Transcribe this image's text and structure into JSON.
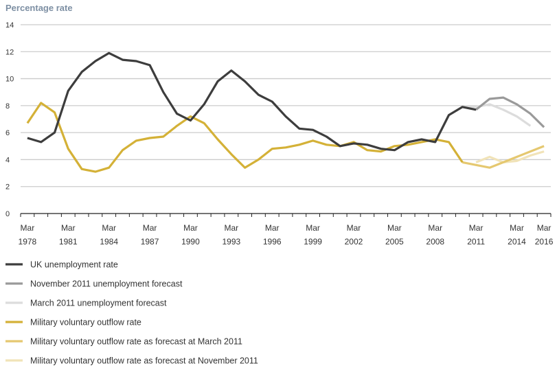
{
  "chart_data": {
    "type": "line",
    "title": "",
    "ylabel": "Percentage rate",
    "xlabel": "",
    "ylim": [
      0,
      14
    ],
    "yticks": [
      0,
      2,
      4,
      6,
      8,
      10,
      12,
      14
    ],
    "xlim": [
      1978,
      2016
    ],
    "xtick_labels": [
      {
        "year": 1978,
        "line1": "Mar",
        "line2": "1978"
      },
      {
        "year": 1981,
        "line1": "Mar",
        "line2": "1981"
      },
      {
        "year": 1984,
        "line1": "Mar",
        "line2": "1984"
      },
      {
        "year": 1987,
        "line1": "Mar",
        "line2": "1987"
      },
      {
        "year": 1990,
        "line1": "Mar",
        "line2": "1990"
      },
      {
        "year": 1993,
        "line1": "Mar",
        "line2": "1993"
      },
      {
        "year": 1996,
        "line1": "Mar",
        "line2": "1996"
      },
      {
        "year": 1999,
        "line1": "Mar",
        "line2": "1999"
      },
      {
        "year": 2002,
        "line1": "Mar",
        "line2": "2002"
      },
      {
        "year": 2005,
        "line1": "Mar",
        "line2": "2005"
      },
      {
        "year": 2008,
        "line1": "Mar",
        "line2": "2008"
      },
      {
        "year": 2011,
        "line1": "Mar",
        "line2": "2011"
      },
      {
        "year": 2014,
        "line1": "Mar",
        "line2": "2014"
      },
      {
        "year": 2016,
        "line1": "Mar",
        "line2": "2016"
      }
    ],
    "grid": true,
    "legend_position": "bottom",
    "series": [
      {
        "name": "UK unemployment rate",
        "color": "#3d3d3d",
        "x": [
          1978,
          1979,
          1980,
          1981,
          1982,
          1983,
          1984,
          1985,
          1986,
          1987,
          1988,
          1989,
          1990,
          1991,
          1992,
          1993,
          1994,
          1995,
          1996,
          1997,
          1998,
          1999,
          2000,
          2001,
          2002,
          2003,
          2004,
          2005,
          2006,
          2007,
          2008,
          2009,
          2010,
          2011
        ],
        "y": [
          5.6,
          5.3,
          6.0,
          9.1,
          10.5,
          11.3,
          11.9,
          11.4,
          11.3,
          11.0,
          9.0,
          7.4,
          6.9,
          8.1,
          9.8,
          10.6,
          9.8,
          8.8,
          8.3,
          7.2,
          6.3,
          6.2,
          5.7,
          5.0,
          5.2,
          5.1,
          4.8,
          4.7,
          5.3,
          5.5,
          5.3,
          7.3,
          7.9,
          7.7
        ]
      },
      {
        "name": "November 2011 unemployment forecast",
        "color": "#9a9a9a",
        "x": [
          2011,
          2012,
          2013,
          2014,
          2015,
          2016
        ],
        "y": [
          7.7,
          8.5,
          8.6,
          8.1,
          7.4,
          6.4
        ]
      },
      {
        "name": "March 2011 unemployment forecast",
        "color": "#dcdcdc",
        "x": [
          2010,
          2011,
          2012,
          2013,
          2014,
          2015
        ],
        "y": [
          7.9,
          7.9,
          8.1,
          7.7,
          7.2,
          6.5
        ]
      },
      {
        "name": "Military voluntary outflow rate",
        "color": "#d4b137",
        "x": [
          1978,
          1979,
          1980,
          1981,
          1982,
          1983,
          1984,
          1985,
          1986,
          1987,
          1988,
          1989,
          1990,
          1991,
          1992,
          1993,
          1994,
          1995,
          1996,
          1997,
          1998,
          1999,
          2000,
          2001,
          2002,
          2003,
          2004,
          2005,
          2006,
          2007,
          2008,
          2009,
          2010
        ],
        "y": [
          6.7,
          8.2,
          7.5,
          4.8,
          3.3,
          3.1,
          3.4,
          4.7,
          5.4,
          5.6,
          5.7,
          6.5,
          7.2,
          6.7,
          5.5,
          4.4,
          3.4,
          4.0,
          4.8,
          4.9,
          5.1,
          5.4,
          5.1,
          5.0,
          5.3,
          4.7,
          4.6,
          5.0,
          5.1,
          5.3,
          5.5,
          5.3,
          3.8
        ]
      },
      {
        "name": "Military voluntary outflow rate as forecast at March 2011",
        "color": "#e5c870",
        "x": [
          2010,
          2011,
          2012,
          2013,
          2014,
          2015,
          2016
        ],
        "y": [
          3.8,
          3.6,
          3.4,
          3.8,
          4.2,
          4.6,
          5.0
        ]
      },
      {
        "name": "Military voluntary outflow rate as forecast at November 2011",
        "color": "#f1e3b8",
        "x": [
          2011,
          2012,
          2013,
          2014,
          2015,
          2016
        ],
        "y": [
          3.8,
          4.2,
          3.8,
          3.9,
          4.3,
          4.6
        ]
      }
    ]
  }
}
